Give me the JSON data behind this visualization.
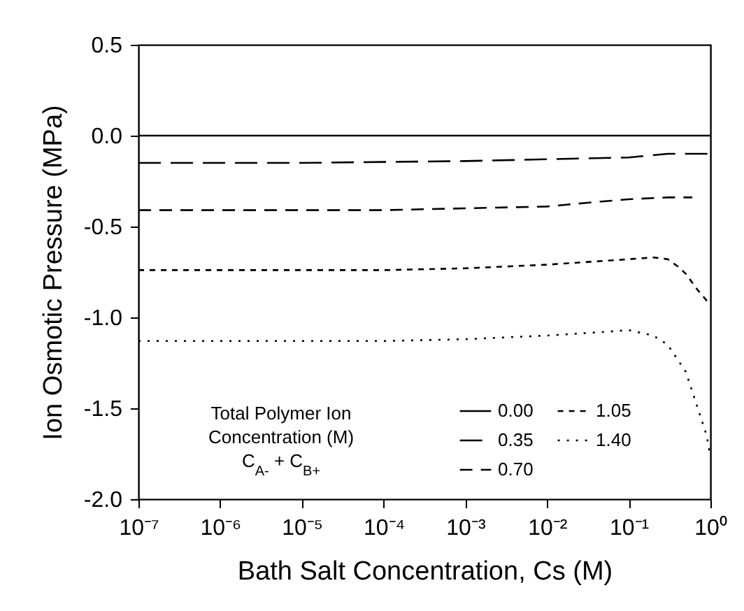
{
  "chart_data": {
    "type": "line",
    "xlabel": "Bath Salt Concentration, Cs (M)",
    "ylabel": "Ion Osmotic Pressure (MPa)",
    "legend_title": "Total Polymer Ion\nConcentration (M)\nC$_{A-}$ + C$_{B+}$",
    "log": "x",
    "legend": "bottom",
    "grid": false,
    "xlim": [
      1e-07,
      1
    ],
    "xticks": [
      {
        "value": 1e-07,
        "label": "10⁻⁷"
      },
      {
        "value": 1e-06,
        "label": "10⁻⁶"
      },
      {
        "value": 1e-05,
        "label": "10⁻⁵"
      },
      {
        "value": 0.0001,
        "label": "10⁻⁴"
      },
      {
        "value": 0.001,
        "label": "10⁻³"
      },
      {
        "value": 0.01,
        "label": "10⁻²"
      },
      {
        "value": 0.1,
        "label": "10⁻¹"
      },
      {
        "value": 1,
        "label": "10⁰"
      }
    ],
    "ylim": [
      -2,
      0.5
    ],
    "yticks": [
      {
        "value": -2,
        "label": "-2.0"
      },
      {
        "value": -1.5,
        "label": "-1.5"
      },
      {
        "value": -1,
        "label": "-1.0"
      },
      {
        "value": -0.5,
        "label": "-0.5"
      },
      {
        "value": 0,
        "label": "0.0"
      },
      {
        "value": 0.5,
        "label": "0.5"
      }
    ],
    "series": [
      {
        "name": "0.00",
        "color": "#000000",
        "line_style": "solid",
        "x": [
          1e-07,
          1
        ],
        "values": [
          0,
          0
        ]
      },
      {
        "name": "0.35",
        "color": "#000000",
        "line_style": "longdash",
        "x": [
          1e-07,
          1e-05,
          0.001,
          0.01,
          0.1,
          0.3,
          1
        ],
        "values": [
          -0.15,
          -0.15,
          -0.14,
          -0.13,
          -0.12,
          -0.1,
          -0.1
        ]
      },
      {
        "name": "0.70",
        "color": "#000000",
        "line_style": "dashed",
        "x": [
          1e-07,
          0.0001,
          0.001,
          0.01,
          0.03,
          0.1,
          0.3,
          0.6
        ],
        "values": [
          -0.41,
          -0.41,
          -0.4,
          -0.39,
          -0.37,
          -0.35,
          -0.34,
          -0.34
        ]
      },
      {
        "name": "1.05",
        "color": "#000000",
        "line_style": "shortdash",
        "x": [
          1e-07,
          0.0001,
          0.001,
          0.01,
          0.1,
          0.2,
          0.3,
          0.4,
          0.5,
          0.7,
          0.95
        ],
        "values": [
          -0.74,
          -0.74,
          -0.73,
          -0.71,
          -0.68,
          -0.67,
          -0.68,
          -0.72,
          -0.76,
          -0.85,
          -0.92
        ]
      },
      {
        "name": "1.40",
        "color": "#000000",
        "line_style": "dotted",
        "x": [
          1e-07,
          0.0001,
          0.001,
          0.01,
          0.05,
          0.1,
          0.2,
          0.3,
          0.5,
          0.7,
          0.9,
          1
        ],
        "values": [
          -1.13,
          -1.13,
          -1.12,
          -1.1,
          -1.08,
          -1.07,
          -1.1,
          -1.15,
          -1.3,
          -1.5,
          -1.65,
          -1.77
        ]
      }
    ]
  }
}
